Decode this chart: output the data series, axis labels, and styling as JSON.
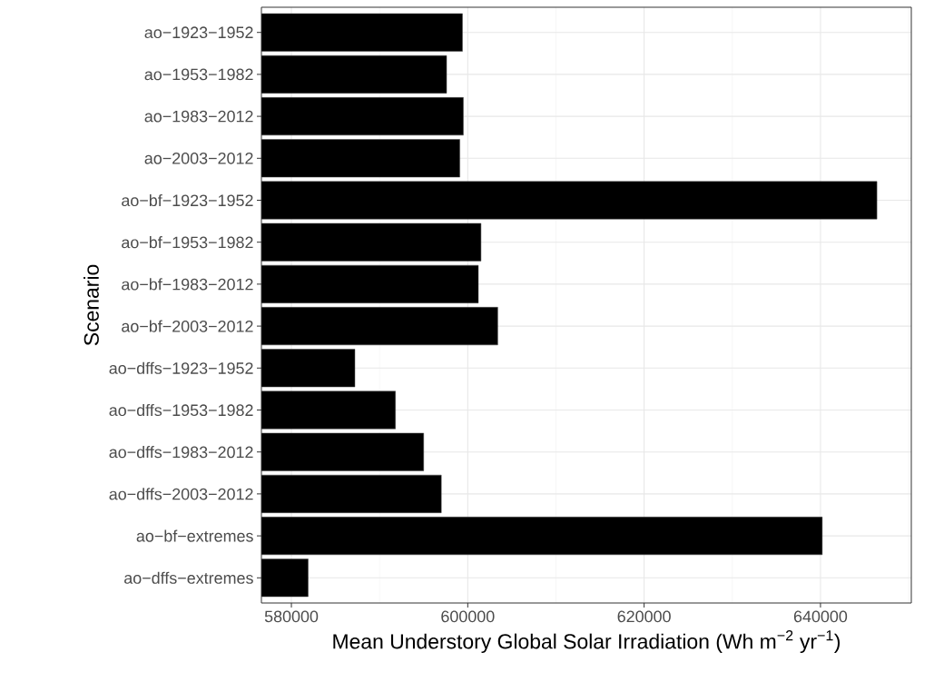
{
  "chart_data": {
    "type": "bar",
    "orientation": "horizontal",
    "xlabel": "Mean Understory Global Solar Irradiation (Wh m$^{−2}$ yr$^{−1}$)",
    "ylabel": "Scenario",
    "categories": [
      "ao−1923−1952",
      "ao−1953−1982",
      "ao−1983−2012",
      "ao−2003−2012",
      "ao−bf−1923−1952",
      "ao−bf−1953−1982",
      "ao−bf−1983−2012",
      "ao−bf−2003−2012",
      "ao−dffs−1923−1952",
      "ao−dffs−1953−1982",
      "ao−dffs−1983−2012",
      "ao−dffs−2003−2012",
      "ao−bf−extremes",
      "ao−dffs−extremes"
    ],
    "values": [
      599400,
      597600,
      599500,
      599100,
      646400,
      601500,
      601200,
      603400,
      587200,
      591800,
      595000,
      597000,
      640200,
      581900
    ],
    "color": "#000000",
    "xlim": [
      576600,
      650300
    ],
    "xticks": [
      580000,
      600000,
      620000,
      640000
    ],
    "grid": true
  }
}
